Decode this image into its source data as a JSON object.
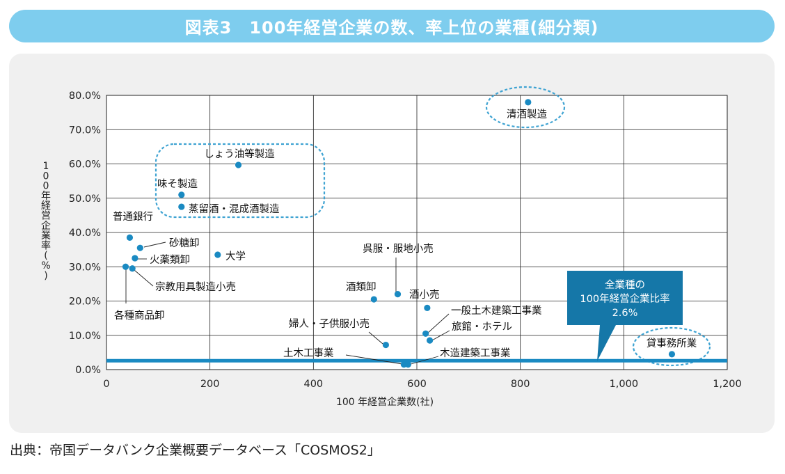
{
  "title": "図表3　100年経営企業の数、率上位の業種(細分類)",
  "source": "出典：帝国データバンク企業概要データベース「COSMOS2」",
  "colors": {
    "accent": "#7ecdee",
    "marker": "#1a8ac2",
    "line": "#1a8ac2",
    "callout": "#1577a8",
    "dashed": "#3fa3d2"
  },
  "callout": {
    "lines": [
      "全業種の",
      "100年経営企業比率",
      "2.6%"
    ]
  },
  "chart_data": {
    "type": "scatter",
    "xlabel": "100 年経営企業数(社)",
    "ylabel": "100年経営企業率(%)",
    "xlim": [
      0,
      1200
    ],
    "ylim": [
      0,
      80
    ],
    "x_ticks": [
      "0",
      "200",
      "400",
      "600",
      "800",
      "1,000",
      "1,200"
    ],
    "y_ticks": [
      "0.0%",
      "10.0%",
      "20.0%",
      "30.0%",
      "40.0%",
      "50.0%",
      "60.0%",
      "70.0%",
      "80.0%"
    ],
    "grid": true,
    "reference_line": {
      "y": 2.6
    },
    "points": [
      {
        "label": "清酒製造",
        "x": 815,
        "y": 78
      },
      {
        "label": "しょう油等製造",
        "x": 255,
        "y": 59.7
      },
      {
        "label": "味そ製造",
        "x": 145,
        "y": 51
      },
      {
        "label": "蒸留酒・混成酒製造",
        "x": 145,
        "y": 47.5
      },
      {
        "label": "普通銀行",
        "x": 45,
        "y": 38.5
      },
      {
        "label": "砂糖卸",
        "x": 65,
        "y": 35.5
      },
      {
        "label": "大学",
        "x": 215,
        "y": 33.5
      },
      {
        "label": "火薬類卸",
        "x": 55,
        "y": 32.5
      },
      {
        "label": "各種商品卸",
        "x": 37,
        "y": 30
      },
      {
        "label": "宗教用具製造小売",
        "x": 50,
        "y": 29.5
      },
      {
        "label": "呉服・服地小売",
        "x": 563,
        "y": 22
      },
      {
        "label": "酒類卸",
        "x": 517,
        "y": 20.5
      },
      {
        "label": "酒小売",
        "x": 620,
        "y": 18
      },
      {
        "label": "一般土木建築工事業",
        "x": 617,
        "y": 10.5
      },
      {
        "label": "旅館・ホテル",
        "x": 625,
        "y": 8.5
      },
      {
        "label": "婦人・子供服小売",
        "x": 540,
        "y": 7.2
      },
      {
        "label": "土木工事業",
        "x": 575,
        "y": 1.5
      },
      {
        "label": "木造建築工事業",
        "x": 583,
        "y": 1.5
      },
      {
        "label": "貸事務所業",
        "x": 1093,
        "y": 4.5
      }
    ]
  }
}
